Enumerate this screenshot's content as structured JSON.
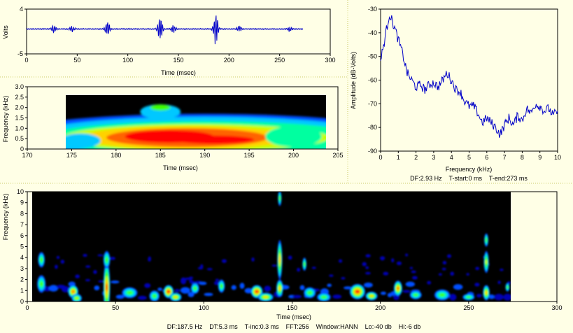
{
  "chart_data": [
    {
      "id": "waveform",
      "type": "line",
      "xlabel": "Time (msec)",
      "ylabel": "Volts",
      "xlim": [
        0,
        300
      ],
      "ylim": [
        -5,
        4
      ],
      "xticks": [
        "0",
        "50",
        "100",
        "150",
        "200",
        "250",
        "300"
      ],
      "yticks": [
        "4",
        "-5"
      ],
      "signal_end_ms": 273,
      "bursts": [
        {
          "t": 27,
          "amp": 0.8
        },
        {
          "t": 45,
          "amp": 0.6
        },
        {
          "t": 80,
          "amp": 1.8
        },
        {
          "t": 132,
          "amp": 3.0
        },
        {
          "t": 145,
          "amp": 0.8
        },
        {
          "t": 187,
          "amp": 4.0
        },
        {
          "t": 210,
          "amp": 0.6
        },
        {
          "t": 260,
          "amp": 0.5
        }
      ],
      "color": "#0000c8"
    },
    {
      "id": "zoom-spectrogram",
      "type": "heatmap",
      "xlabel": "Time (msec)",
      "ylabel": "Frequency (kHz)",
      "xlim": [
        170,
        205
      ],
      "ylim": [
        0,
        3
      ],
      "xticks": [
        "170",
        "175",
        "180",
        "185",
        "190",
        "195",
        "200",
        "205"
      ],
      "yticks": [
        "0",
        "0.5",
        "1.0",
        "1.5",
        "2.0",
        "2.5",
        "3.0"
      ],
      "data_x_range": [
        174,
        204
      ],
      "data_y_max": 2.6
    },
    {
      "id": "spectrum",
      "type": "line",
      "xlabel": "Frequency (kHz)",
      "ylabel": "Amplitude (dB-Volts)",
      "xlim": [
        0,
        10
      ],
      "ylim": [
        -90,
        -30
      ],
      "xticks": [
        "0",
        "1",
        "2",
        "3",
        "4",
        "5",
        "6",
        "7",
        "8",
        "9",
        "10"
      ],
      "yticks": [
        "-30",
        "-40",
        "-50",
        "-60",
        "-70",
        "-80",
        "-90"
      ],
      "x": [
        0,
        0.25,
        0.5,
        0.75,
        1.0,
        1.25,
        1.5,
        1.75,
        2.0,
        2.25,
        2.5,
        2.75,
        3.0,
        3.25,
        3.5,
        3.75,
        4.0,
        4.25,
        4.5,
        4.75,
        5.0,
        5.25,
        5.5,
        5.75,
        6.0,
        6.25,
        6.5,
        6.75,
        7.0,
        7.25,
        7.5,
        7.75,
        8.0,
        8.25,
        8.5,
        8.75,
        9.0,
        9.25,
        9.5,
        9.75,
        10.0
      ],
      "y": [
        -52,
        -42,
        -32,
        -37,
        -43,
        -49,
        -57,
        -60,
        -63,
        -62,
        -64,
        -62,
        -61,
        -63,
        -60,
        -57,
        -60,
        -64,
        -65,
        -69,
        -71,
        -71,
        -74,
        -78,
        -76,
        -78,
        -80,
        -83,
        -79,
        -76,
        -79,
        -75,
        -77,
        -72,
        -74,
        -70,
        -71,
        -73,
        -72,
        -75,
        -73
      ],
      "color": "#0000c8"
    },
    {
      "id": "full-spectrogram",
      "type": "heatmap",
      "xlabel": "Time (msec)",
      "ylabel": "Frequency (kHz)",
      "xlim": [
        0,
        300
      ],
      "ylim": [
        0,
        10
      ],
      "xticks": [
        "0",
        "50",
        "100",
        "150",
        "200",
        "250",
        "300"
      ],
      "yticks": [
        "0",
        "1",
        "2",
        "3",
        "4",
        "5",
        "6",
        "7",
        "8",
        "9",
        "10"
      ],
      "data_x_range": [
        5,
        273
      ],
      "blobs": [
        {
          "t": 8,
          "f": 3.8,
          "w": 3,
          "h": 0.7,
          "i": 0.5
        },
        {
          "t": 8,
          "f": 1.6,
          "w": 4,
          "h": 0.8,
          "i": 0.55
        },
        {
          "t": 26,
          "f": 0.9,
          "w": 5,
          "h": 0.6,
          "i": 0.9
        },
        {
          "t": 28,
          "f": 0.3,
          "w": 5,
          "h": 0.4,
          "i": 0.6
        },
        {
          "t": 45,
          "f": 1.3,
          "w": 3,
          "h": 2.4,
          "i": 0.85
        },
        {
          "t": 45,
          "f": 3.8,
          "w": 3,
          "h": 0.8,
          "i": 0.55
        },
        {
          "t": 58,
          "f": 0.8,
          "w": 8,
          "h": 0.5,
          "i": 0.5
        },
        {
          "t": 72,
          "f": 0.5,
          "w": 5,
          "h": 0.5,
          "i": 0.45
        },
        {
          "t": 80,
          "f": 0.9,
          "w": 5,
          "h": 0.6,
          "i": 1.0
        },
        {
          "t": 84,
          "f": 0.4,
          "w": 6,
          "h": 0.4,
          "i": 0.7
        },
        {
          "t": 95,
          "f": 1.2,
          "w": 4,
          "h": 0.5,
          "i": 0.5
        },
        {
          "t": 110,
          "f": 1.4,
          "w": 3,
          "h": 0.6,
          "i": 0.55
        },
        {
          "t": 130,
          "f": 0.9,
          "w": 6,
          "h": 0.6,
          "i": 1.0
        },
        {
          "t": 135,
          "f": 0.4,
          "w": 8,
          "h": 0.4,
          "i": 0.7
        },
        {
          "t": 143,
          "f": 3.8,
          "w": 2,
          "h": 1.8,
          "i": 0.75
        },
        {
          "t": 143,
          "f": 1.2,
          "w": 3,
          "h": 0.8,
          "i": 0.8
        },
        {
          "t": 143,
          "f": 9.4,
          "w": 1.2,
          "h": 0.7,
          "i": 0.45
        },
        {
          "t": 157,
          "f": 3.4,
          "w": 1.5,
          "h": 0.6,
          "i": 0.5
        },
        {
          "t": 160,
          "f": 0.8,
          "w": 6,
          "h": 0.5,
          "i": 0.55
        },
        {
          "t": 168,
          "f": 0.4,
          "w": 7,
          "h": 0.4,
          "i": 0.5
        },
        {
          "t": 187,
          "f": 0.9,
          "w": 8,
          "h": 0.7,
          "i": 1.0
        },
        {
          "t": 195,
          "f": 0.5,
          "w": 6,
          "h": 0.4,
          "i": 0.7
        },
        {
          "t": 210,
          "f": 1.2,
          "w": 4,
          "h": 0.7,
          "i": 0.85
        },
        {
          "t": 220,
          "f": 0.6,
          "w": 6,
          "h": 0.4,
          "i": 0.5
        },
        {
          "t": 235,
          "f": 0.6,
          "w": 8,
          "h": 0.5,
          "i": 0.5
        },
        {
          "t": 250,
          "f": 0.4,
          "w": 6,
          "h": 0.3,
          "i": 0.45
        },
        {
          "t": 260,
          "f": 5.6,
          "w": 1.5,
          "h": 0.6,
          "i": 0.5
        },
        {
          "t": 260,
          "f": 3.6,
          "w": 2,
          "h": 1.0,
          "i": 0.6
        },
        {
          "t": 260,
          "f": 0.8,
          "w": 3,
          "h": 0.7,
          "i": 0.7
        },
        {
          "t": 272,
          "f": 1.3,
          "w": 1.5,
          "h": 0.4,
          "i": 0.5
        }
      ]
    }
  ],
  "info": {
    "spectrum_line": "DF:2.93 Hz    T-start:0 ms    T-end:273 ms",
    "spectrogram_line": "DF:187.5 Hz    DT:5.3 ms    T-inc:0.3 ms    FFT:256    Window:HANN    Lo:-40 db    Hi:-6 db"
  }
}
